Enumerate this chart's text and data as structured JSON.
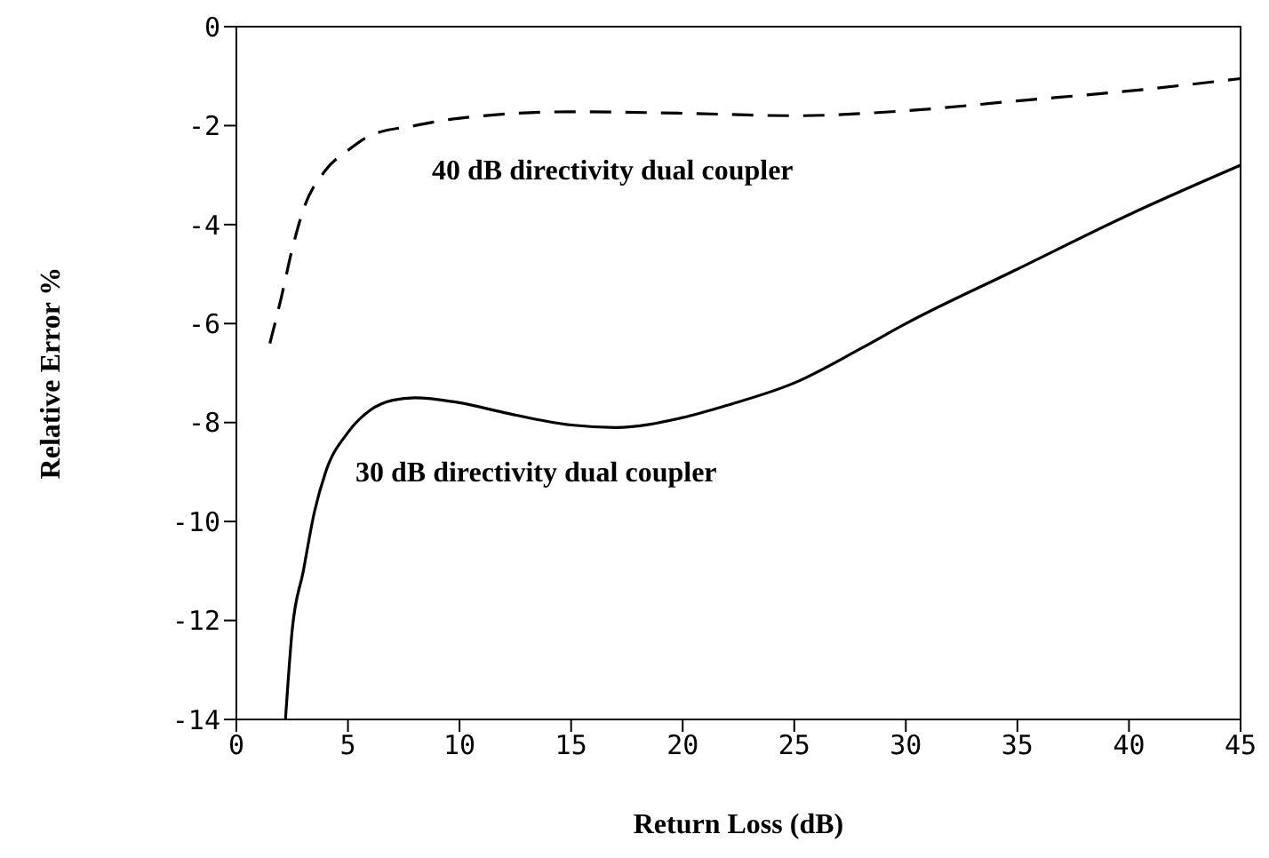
{
  "chart_data": {
    "type": "line",
    "xlabel": "Return Loss (dB)",
    "ylabel": "Relative Error %",
    "xlim": [
      0,
      45
    ],
    "xticks": [
      0,
      5,
      10,
      15,
      20,
      25,
      30,
      35,
      40,
      45
    ],
    "ylim": [
      -14,
      0
    ],
    "yticks": [
      -14,
      -12,
      -10,
      -8,
      -6,
      -4,
      -2,
      0
    ],
    "marker": "none",
    "series": [
      {
        "name": "40 dB directivity dual coupler",
        "color": "#000000",
        "line_style": "dashed",
        "x": [
          1.5,
          2,
          2.5,
          3,
          4,
          5,
          6,
          8,
          10,
          15,
          20,
          25,
          30,
          35,
          40,
          45
        ],
        "values": [
          -6.4,
          -5.5,
          -4.5,
          -3.7,
          -2.9,
          -2.5,
          -2.2,
          -2.0,
          -1.85,
          -1.72,
          -1.75,
          -1.8,
          -1.7,
          -1.5,
          -1.3,
          -1.05
        ]
      },
      {
        "name": "30 dB directivity dual coupler",
        "color": "#000000",
        "line_style": "solid",
        "x": [
          2.2,
          2.5,
          3,
          3.5,
          4,
          5,
          6,
          7,
          8,
          10,
          12,
          15,
          17,
          20,
          22,
          25,
          28,
          30,
          35,
          40,
          45
        ],
        "values": [
          -14,
          -12.2,
          -11,
          -9.8,
          -9.0,
          -8.2,
          -7.75,
          -7.55,
          -7.5,
          -7.6,
          -7.8,
          -8.05,
          -8.1,
          -7.9,
          -7.65,
          -7.2,
          -6.5,
          -6.0,
          -4.9,
          -3.8,
          -2.8
        ]
      }
    ]
  }
}
